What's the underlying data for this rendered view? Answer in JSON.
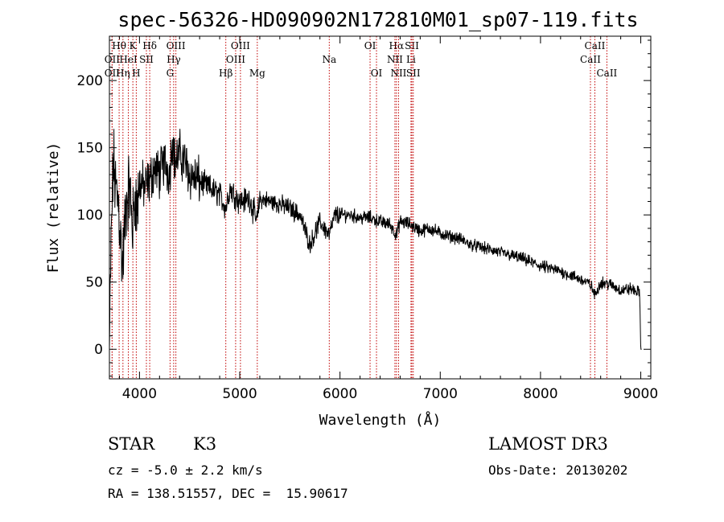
{
  "chart_data": {
    "type": "line",
    "title": "spec-56326-HD090902N172810M01_sp07-119.fits",
    "xlabel": "Wavelength (Å)",
    "ylabel": "Flux (relative)",
    "xlim": [
      3700,
      9100
    ],
    "ylim": [
      -22,
      233
    ],
    "xticks": [
      4000,
      5000,
      6000,
      7000,
      8000,
      9000
    ],
    "yticks": [
      0,
      50,
      100,
      150,
      200
    ],
    "spectrum": {
      "anchors_wavelength": [
        3700,
        3720,
        3740,
        3760,
        3790,
        3830,
        3870,
        3900,
        3933,
        3960,
        3970,
        4000,
        4050,
        4101,
        4150,
        4200,
        4250,
        4300,
        4330,
        4350,
        4400,
        4450,
        4500,
        4600,
        4700,
        4800,
        4861,
        4900,
        5000,
        5100,
        5170,
        5200,
        5300,
        5400,
        5500,
        5600,
        5700,
        5800,
        5893,
        5950,
        6000,
        6100,
        6200,
        6300,
        6400,
        6500,
        6563,
        6600,
        6700,
        6800,
        6900,
        7000,
        7100,
        7200,
        7300,
        7400,
        7500,
        7600,
        7700,
        7800,
        7900,
        8000,
        8100,
        8200,
        8300,
        8400,
        8500,
        8542,
        8600,
        8700,
        8800,
        8900,
        8990,
        9000,
        9010
      ],
      "anchors_flux": [
        0,
        90,
        140,
        120,
        110,
        60,
        110,
        120,
        90,
        120,
        100,
        125,
        120,
        125,
        135,
        130,
        140,
        130,
        160,
        140,
        145,
        140,
        130,
        125,
        120,
        115,
        105,
        120,
        110,
        112,
        95,
        112,
        110,
        108,
        105,
        100,
        78,
        95,
        85,
        100,
        100,
        100,
        98,
        98,
        95,
        93,
        85,
        95,
        93,
        88,
        90,
        86,
        84,
        82,
        78,
        76,
        74,
        72,
        70,
        68,
        65,
        62,
        60,
        58,
        55,
        52,
        48,
        40,
        50,
        48,
        44,
        45,
        42,
        0,
        0
      ],
      "noise_amplitude_regions": [
        [
          3700,
          4000,
          45
        ],
        [
          4000,
          4600,
          28
        ],
        [
          4600,
          5200,
          15
        ],
        [
          5200,
          6000,
          11
        ],
        [
          6000,
          7000,
          8
        ],
        [
          7000,
          9000,
          7
        ]
      ]
    },
    "lines": [
      {
        "label": "Hθ",
        "wavelength": 3797,
        "row": 1
      },
      {
        "label": "OII",
        "wavelength": 3727,
        "row": 2
      },
      {
        "label": "OII",
        "wavelength": 3727,
        "row": 3
      },
      {
        "label": "K",
        "wavelength": 3934,
        "row": 1
      },
      {
        "label": "HeI",
        "wavelength": 3889,
        "row": 2
      },
      {
        "label": "Hη",
        "wavelength": 3835,
        "row": 3
      },
      {
        "label": "H",
        "wavelength": 3968,
        "row": 3
      },
      {
        "label": "SII",
        "wavelength": 4069,
        "row": 2
      },
      {
        "label": "Hδ",
        "wavelength": 4102,
        "row": 1
      },
      {
        "label": "OIII",
        "wavelength": 4363,
        "row": 1
      },
      {
        "label": "Hγ",
        "wavelength": 4341,
        "row": 2
      },
      {
        "label": "G",
        "wavelength": 4305,
        "row": 3
      },
      {
        "label": "Hβ",
        "wavelength": 4861,
        "row": 3
      },
      {
        "label": "OIII",
        "wavelength": 5007,
        "row": 1
      },
      {
        "label": "OIII",
        "wavelength": 4959,
        "row": 2
      },
      {
        "label": "Mg",
        "wavelength": 5175,
        "row": 3
      },
      {
        "label": "Na",
        "wavelength": 5893,
        "row": 2
      },
      {
        "label": "OI",
        "wavelength": 6300,
        "row": 1
      },
      {
        "label": "OI",
        "wavelength": 6364,
        "row": 3
      },
      {
        "label": "Hα",
        "wavelength": 6563,
        "row": 1
      },
      {
        "label": "SII",
        "wavelength": 6717,
        "row": 1
      },
      {
        "label": "NII",
        "wavelength": 6548,
        "row": 2
      },
      {
        "label": "Li",
        "wavelength": 6708,
        "row": 2
      },
      {
        "label": "NII",
        "wavelength": 6584,
        "row": 3
      },
      {
        "label": "SII",
        "wavelength": 6731,
        "row": 3
      },
      {
        "label": "CaII",
        "wavelength": 8542,
        "row": 1
      },
      {
        "label": "CaII",
        "wavelength": 8498,
        "row": 2
      },
      {
        "label": "CaII",
        "wavelength": 8662,
        "row": 3
      }
    ]
  },
  "info": {
    "object_class": "STAR",
    "subclass": "K3",
    "survey": "LAMOST DR3",
    "velocity": "cz = -5.0 ± 2.2 km/s",
    "obs_date": "Obs-Date: 20130202",
    "coords": "RA = 138.51557, DEC =  15.90617"
  }
}
